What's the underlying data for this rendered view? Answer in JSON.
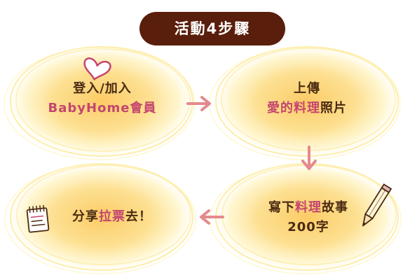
{
  "title": "活動4步驟",
  "steps": [
    {
      "line1": "登入/加入",
      "line2": "BabyHome會員"
    },
    {
      "line1": "上傳",
      "line2_highlight": "愛的料理",
      "line2_tail": "照片"
    },
    {
      "head": "分享",
      "highlight": "拉票",
      "tail": "去！"
    },
    {
      "line1_head": "寫下",
      "line1_highlight": "料理",
      "line1_tail": "故事",
      "line2": "200字"
    }
  ],
  "colors": {
    "title_bg": "#5a1e0c",
    "blob_center": "#fbc24a",
    "blob_edge": "#fff2b8",
    "arrow": "#e58a8c",
    "highlight_text": "#c4466f",
    "body_text": "#4a2a12"
  },
  "icons": {
    "step1": "heart-icon",
    "step3": "notepad-icon",
    "step4": "pencil-icon"
  }
}
